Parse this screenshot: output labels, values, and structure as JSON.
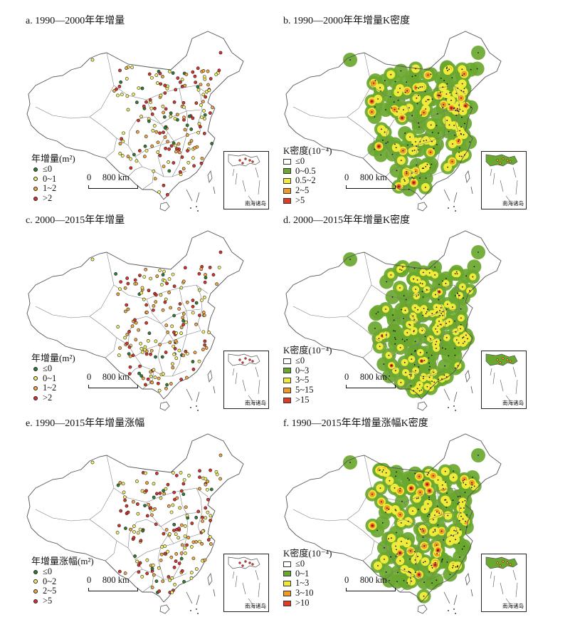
{
  "colors": {
    "border": "#555555",
    "dot_outline": "#222222",
    "points": [
      "#2f7d32",
      "#f3ef6a",
      "#f2a541",
      "#d7332b"
    ],
    "kde": [
      "#ffffff",
      "#6aa72f",
      "#f0ea3a",
      "#f29a23",
      "#e13b25"
    ]
  },
  "panels": [
    {
      "title": "a. 1990—2000年年增量",
      "legend_title": "年增量(m²)",
      "legend_kind": "points",
      "classes": [
        "≤0",
        "0~1",
        "1~2",
        ">2"
      ],
      "scale_label": "0     800 km",
      "inset_label": "南海诸岛"
    },
    {
      "title": "b. 1990—2000年年增量K密度",
      "legend_title": "K密度(10⁻⁴)",
      "legend_kind": "kde",
      "classes": [
        "≤0",
        "0~0.5",
        "0.5~2",
        "2~5",
        ">5"
      ],
      "scale_label": "0     800 km",
      "inset_label": "南海诸岛"
    },
    {
      "title": "c. 2000—2015年年增量",
      "legend_title": "年增量(m²)",
      "legend_kind": "points",
      "classes": [
        "≤0",
        "0~1",
        "1~2",
        ">2"
      ],
      "scale_label": "0     800 km",
      "inset_label": "南海诸岛"
    },
    {
      "title": "d. 2000—2015年年增量K密度",
      "legend_title": "K密度(10⁻⁴)",
      "legend_kind": "kde",
      "classes": [
        "≤0",
        "0~3",
        "3~5",
        "5~15",
        ">15"
      ],
      "scale_label": "0     800 km",
      "inset_label": "南海诸岛"
    },
    {
      "title": "e. 1990—2015年年增量涨幅",
      "legend_title": "年增量涨幅(m²)",
      "legend_kind": "points",
      "classes": [
        "≤0",
        "0~2",
        "2~5",
        ">5"
      ],
      "scale_label": "0     800 km",
      "inset_label": "南海诸岛"
    },
    {
      "title": "f. 1990—2015年年增量涨幅K密度",
      "legend_title": "K密度(10⁻⁴)",
      "legend_kind": "kde",
      "classes": [
        "≤0",
        "0~1",
        "1~3",
        "3~10",
        ">10"
      ],
      "scale_label": "0     800 km",
      "inset_label": "南海诸岛"
    }
  ]
}
